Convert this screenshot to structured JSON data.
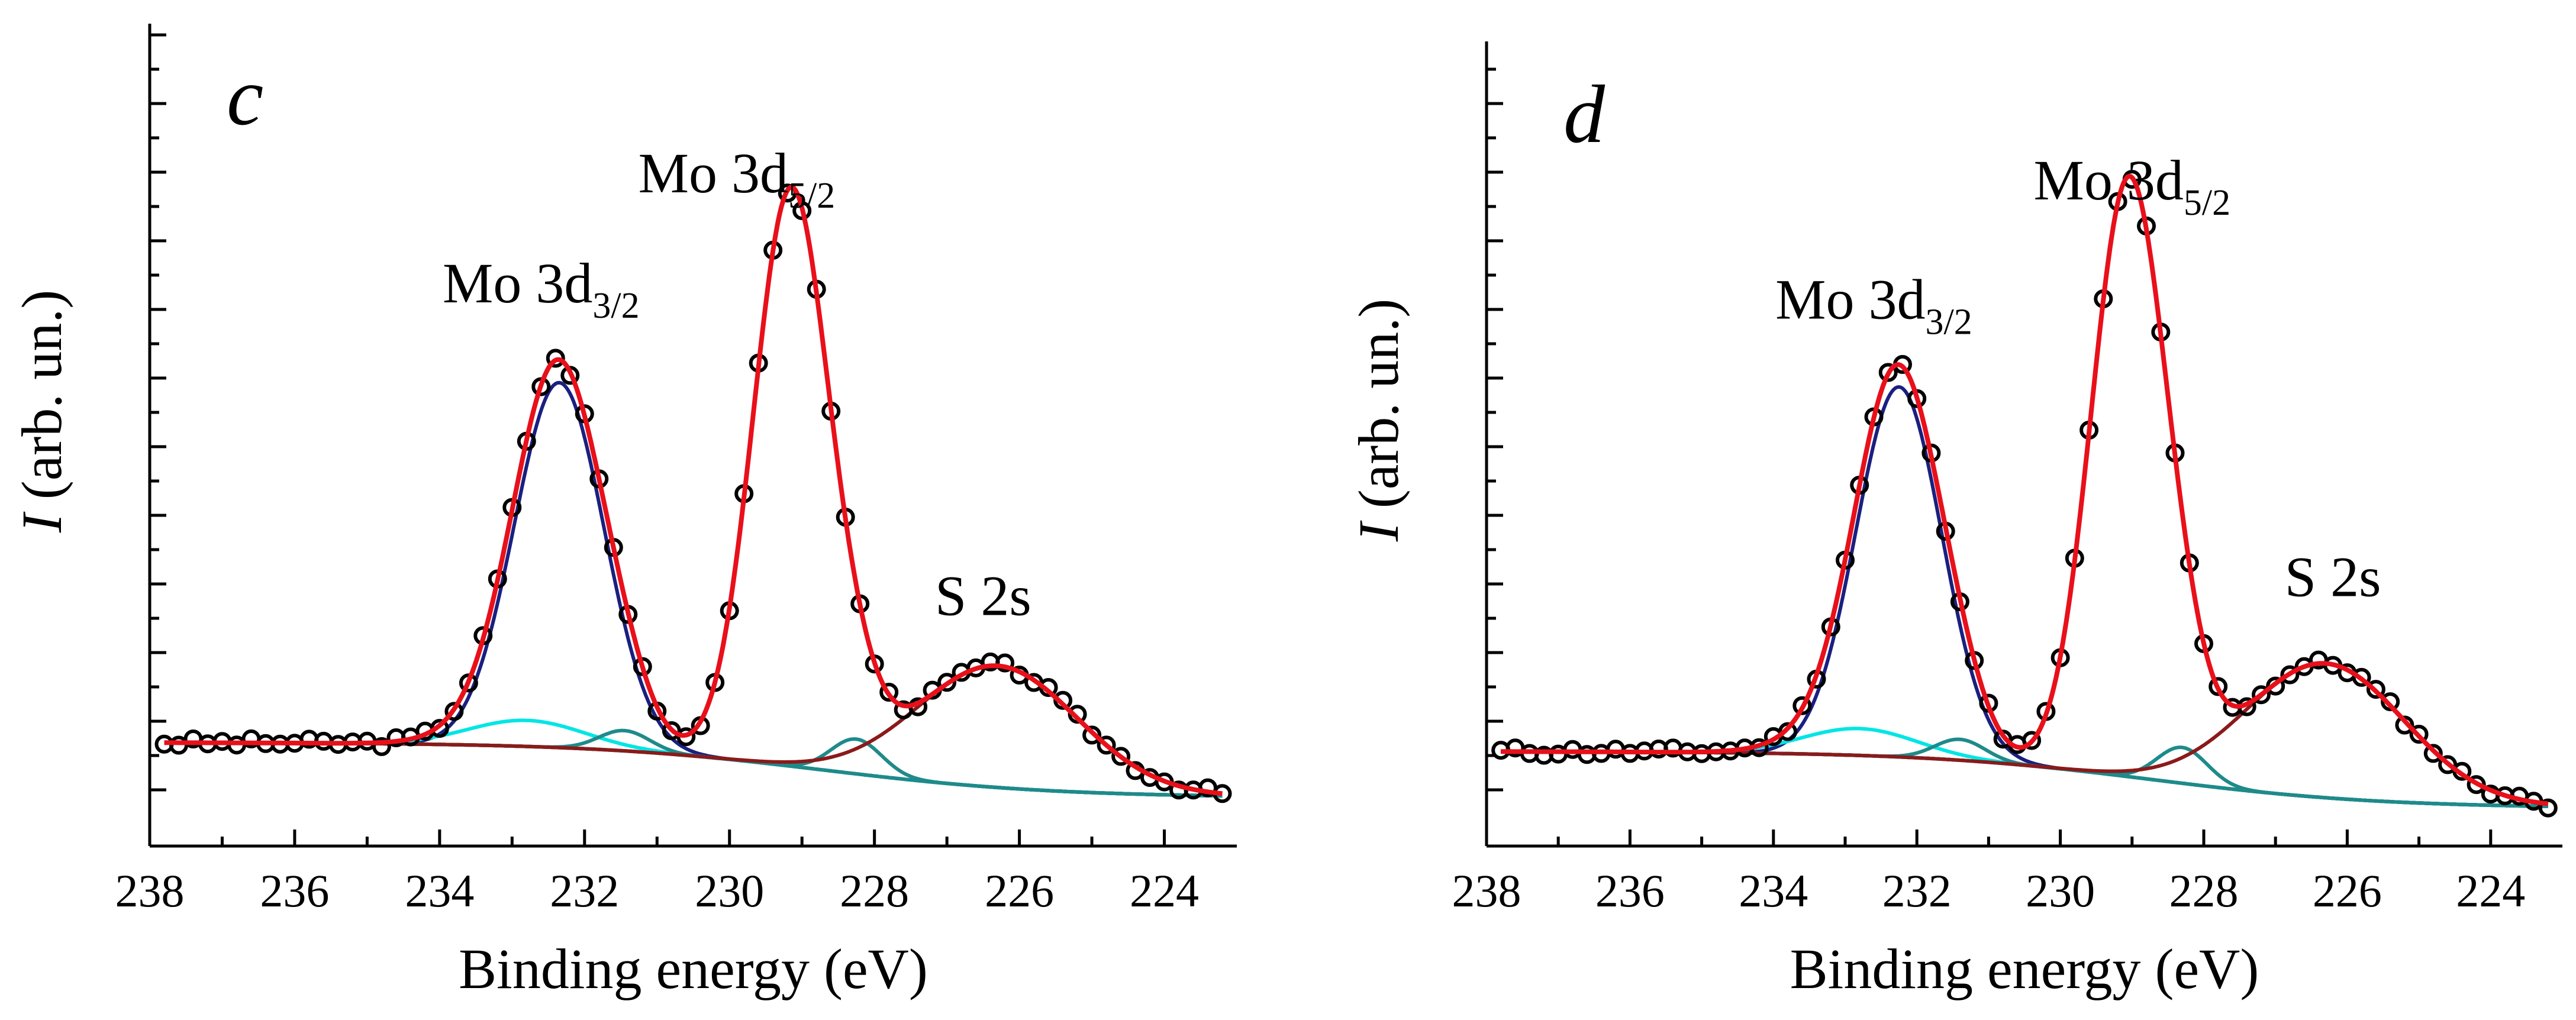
{
  "chart_data": [
    {
      "type": "scatter",
      "panel_label": "c",
      "xlabel": "Binding energy (eV)",
      "ylabel_italic": "I",
      "ylabel": " (arb. un.)",
      "xlim": [
        238,
        223
      ],
      "ylim": [
        -0.25,
        2.4
      ],
      "x_ticks": [
        238,
        236,
        234,
        232,
        230,
        228,
        226,
        224
      ],
      "annotations": [
        {
          "main": "Mo 3d",
          "sub": "3/2",
          "x": 232.6,
          "y": 1.52
        },
        {
          "main": "Mo 3d",
          "sub": "5/2",
          "x": 229.9,
          "y": 1.9
        },
        {
          "main": "S 2s",
          "sub": "",
          "x": 226.5,
          "y": 0.44
        }
      ],
      "series": [
        {
          "name": "background",
          "color": "#7f7f7f",
          "width": 6,
          "components": [
            {
              "type": "bg",
              "base": 0,
              "step": -0.19,
              "center": 228.7,
              "width": 1.6
            }
          ]
        },
        {
          "name": "Mo 3d3/2 main",
          "color": "#1a2080",
          "width": 6,
          "components": [
            {
              "type": "gauss",
              "center": 232.35,
              "amp": 1.26,
              "sigma": 0.62
            }
          ]
        },
        {
          "name": "Mo 3d3/2 satellite",
          "color": "#00e5e5",
          "width": 6,
          "components": [
            {
              "type": "gauss",
              "center": 232.8,
              "amp": 0.09,
              "sigma": 0.8
            }
          ]
        },
        {
          "name": "minor component 231.4",
          "color": "#1f8a8a",
          "width": 6,
          "components": [
            {
              "type": "gauss",
              "center": 231.45,
              "amp": 0.07,
              "sigma": 0.35
            }
          ]
        },
        {
          "name": "minor component 228.2",
          "color": "#1f8a8a",
          "width": 6,
          "components": [
            {
              "type": "gauss",
              "center": 228.25,
              "amp": 0.12,
              "sigma": 0.35
            }
          ]
        },
        {
          "name": "S 2s",
          "color": "#8b1a1a",
          "width": 6,
          "components": [
            {
              "type": "gauss",
              "center": 226.3,
              "amp": 0.42,
              "sigma": 1.1
            }
          ]
        },
        {
          "name": "envelope fit",
          "color": "#e8101a",
          "width": 8,
          "components": [
            {
              "type": "sum"
            }
          ]
        }
      ],
      "measured_points": {
        "x_start": 237.8,
        "x_end": 223.2,
        "step": 0.2,
        "noise_seed": 3
      }
    },
    {
      "type": "scatter",
      "panel_label": "d",
      "xlabel": "Binding energy (eV)",
      "ylabel_italic": "I",
      "ylabel": " (arb. un.)",
      "xlim": [
        238,
        223
      ],
      "ylim": [
        -0.25,
        2.3
      ],
      "x_ticks": [
        238,
        236,
        234,
        232,
        230,
        228,
        226,
        224
      ],
      "annotations": [
        {
          "main": "Mo 3d",
          "sub": "3/2",
          "x": 232.6,
          "y": 1.45
        },
        {
          "main": "Mo 3d",
          "sub": "5/2",
          "x": 229.0,
          "y": 1.85
        },
        {
          "main": "S 2s",
          "sub": "",
          "x": 226.2,
          "y": 0.52
        }
      ],
      "series": [
        {
          "name": "background",
          "color": "#7f7f7f",
          "width": 6,
          "components": [
            {
              "type": "bg",
              "base": 0,
              "step": -0.19,
              "center": 228.7,
              "width": 1.6
            }
          ]
        },
        {
          "name": "Mo 3d3/2 main",
          "color": "#1a2080",
          "width": 6,
          "components": [
            {
              "type": "gauss",
              "center": 232.25,
              "amp": 1.24,
              "sigma": 0.6
            }
          ]
        },
        {
          "name": "Mo 3d3/2 satellite",
          "color": "#00e5e5",
          "width": 6,
          "components": [
            {
              "type": "gauss",
              "center": 232.8,
              "amp": 0.09,
              "sigma": 0.8
            }
          ]
        },
        {
          "name": "minor component 231.4",
          "color": "#1f8a8a",
          "width": 6,
          "components": [
            {
              "type": "gauss",
              "center": 231.4,
              "amp": 0.07,
              "sigma": 0.35
            }
          ]
        },
        {
          "name": "minor component 228.2",
          "color": "#1f8a8a",
          "width": 6,
          "components": [
            {
              "type": "gauss",
              "center": 228.3,
              "amp": 0.12,
              "sigma": 0.35
            }
          ]
        },
        {
          "name": "S 2s",
          "color": "#8b1a1a",
          "width": 6,
          "components": [
            {
              "type": "gauss",
              "center": 226.3,
              "amp": 0.45,
              "sigma": 1.1
            }
          ]
        },
        {
          "name": "envelope fit",
          "color": "#e8101a",
          "width": 8,
          "components": [
            {
              "type": "sum"
            }
          ]
        }
      ],
      "measured_points": {
        "x_start": 237.8,
        "x_end": 223.2,
        "step": 0.2,
        "noise_seed": 11
      }
    }
  ]
}
